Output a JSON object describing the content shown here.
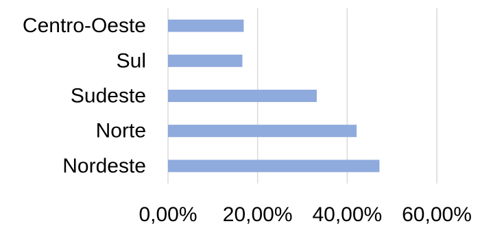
{
  "chart_data": {
    "type": "bar",
    "orientation": "horizontal",
    "categories": [
      "Centro-Oeste",
      "Sul",
      "Sudeste",
      "Norte",
      "Nordeste"
    ],
    "values": [
      0.169,
      0.166,
      0.332,
      0.421,
      0.472
    ],
    "xlim": [
      0,
      0.6
    ],
    "x_ticks": [
      0,
      0.2,
      0.4,
      0.6
    ],
    "x_tick_labels": [
      "0,00%",
      "20,00%",
      "40,00%",
      "60,00%"
    ],
    "title": "",
    "xlabel": "",
    "ylabel": "",
    "grid": "vertical",
    "legend": "none",
    "bar_color": "#8faadc",
    "grid_color": "#d9d9d9"
  }
}
